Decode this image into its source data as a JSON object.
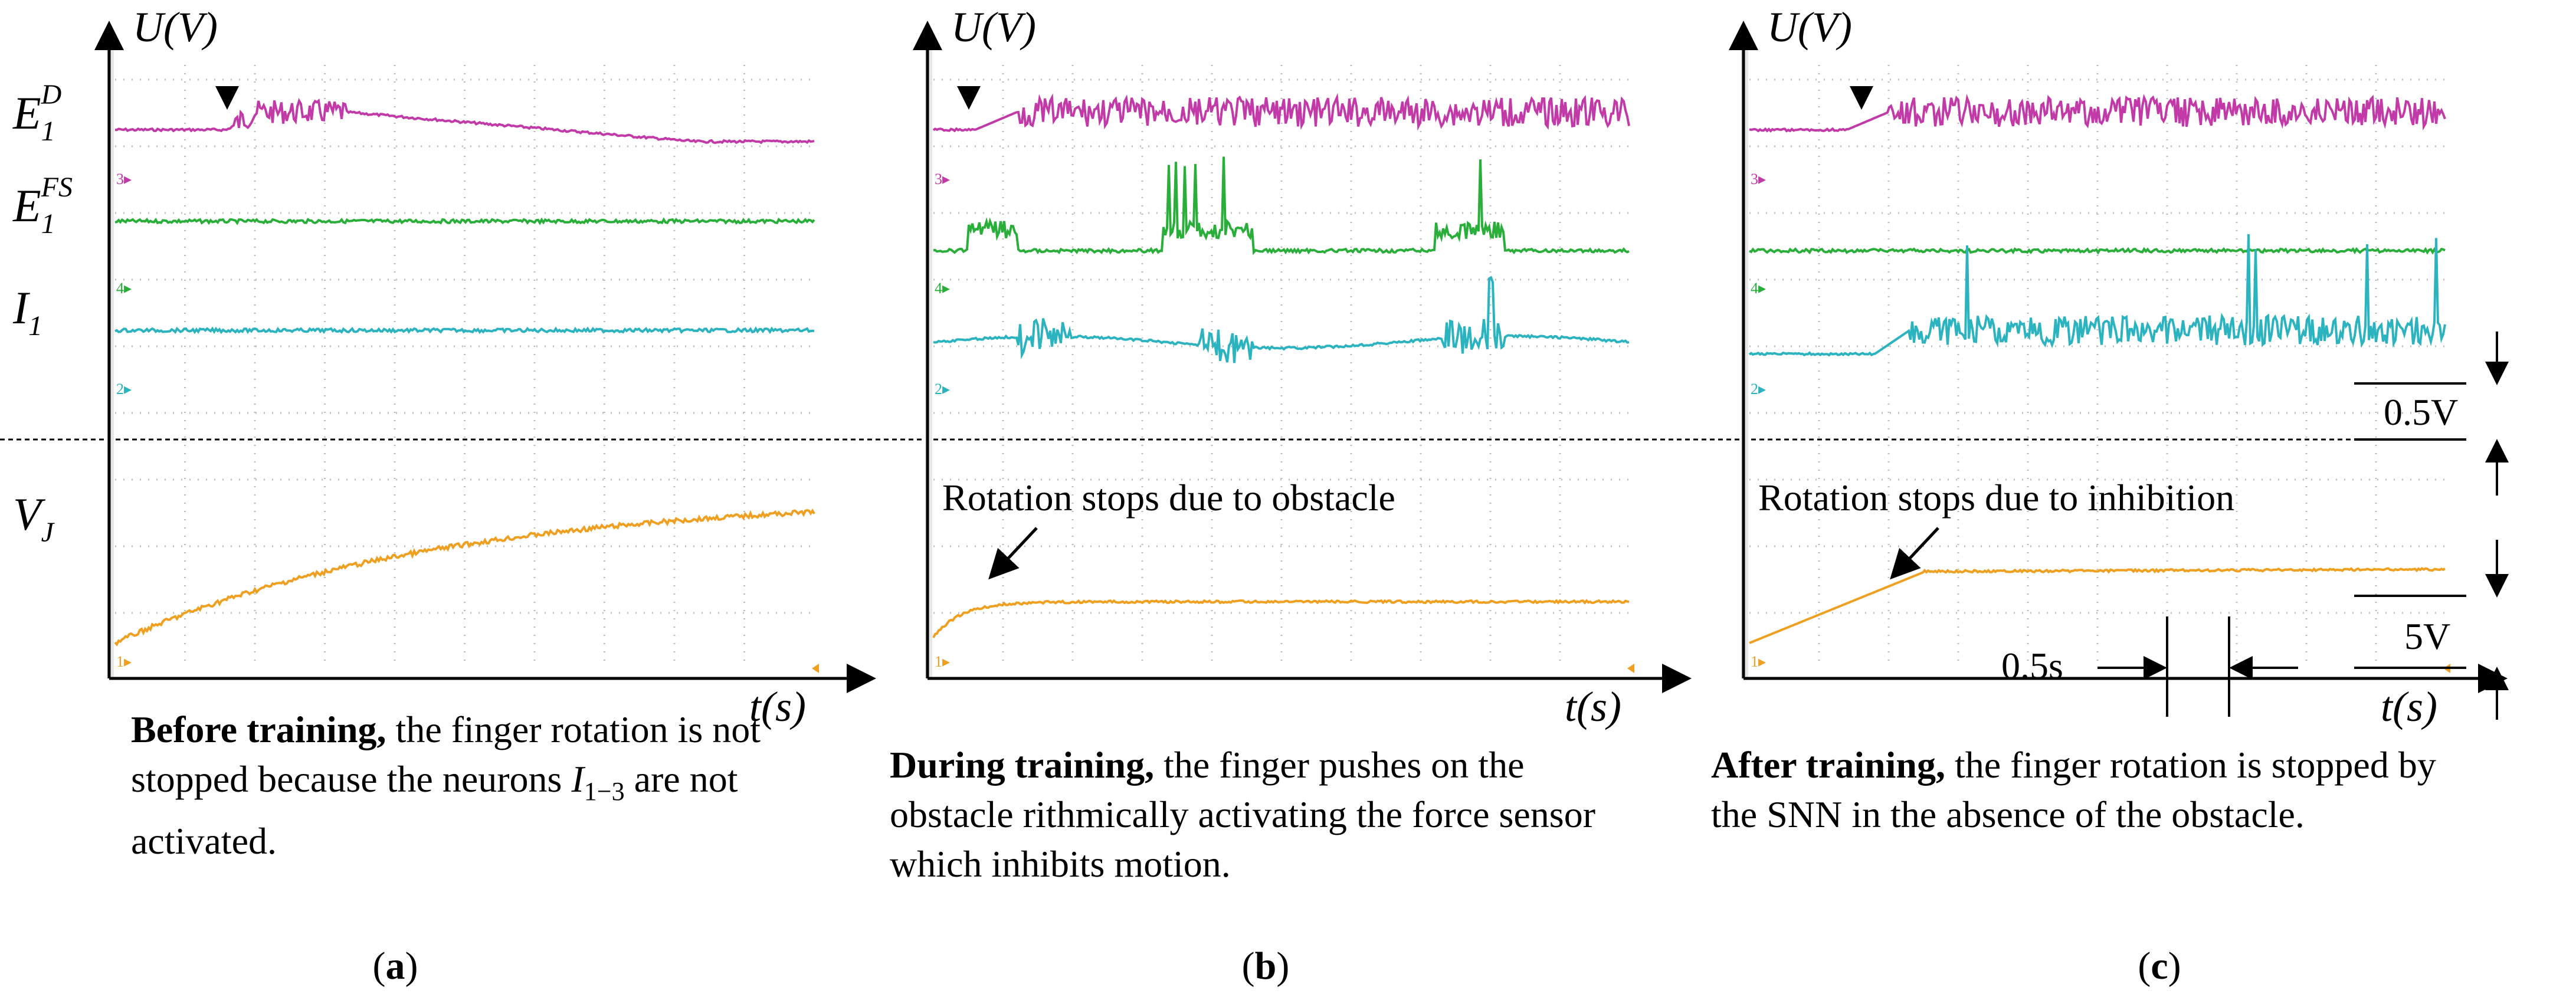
{
  "chart_data": [
    {
      "type": "line",
      "panel": "a",
      "title": "",
      "ylabel": "U(V)",
      "xlabel": "t(s)",
      "series": [
        {
          "name": "E_1^D",
          "color": "#c23aa8",
          "signal": "rise then brief spiking burst, then slow decay"
        },
        {
          "name": "E_1^FS",
          "color": "#2aae3a",
          "signal": "flat baseline"
        },
        {
          "name": "I_1",
          "color": "#2bb3c0",
          "signal": "flat baseline"
        },
        {
          "name": "V_J",
          "color": "#f0a020",
          "signal": "continuous rise (rotation not stopped)"
        }
      ],
      "annotation": "",
      "caption_bold": "Before training,",
      "caption_rest": " the finger rotation is not stopped because the neurons",
      "caption_sym": "I",
      "caption_sub": "1−3",
      "caption_tail": " are not activated.",
      "label": "a"
    },
    {
      "type": "line",
      "panel": "b",
      "ylabel": "U(V)",
      "xlabel": "t(s)",
      "series": [
        {
          "name": "E_1^D",
          "color": "#c23aa8",
          "signal": "rise then continuous spiking"
        },
        {
          "name": "E_1^FS",
          "color": "#2aae3a",
          "signal": "three rhythmic bursts of spikes"
        },
        {
          "name": "I_1",
          "color": "#2bb3c0",
          "signal": "three rhythmic bursts"
        },
        {
          "name": "V_J",
          "color": "#f0a020",
          "signal": "quick rise then plateau"
        }
      ],
      "annotation": "Rotation stops due to obstacle",
      "caption_bold": "During training,",
      "caption_rest": " the finger pushes on the obstacle rithmically activating the force sensor which inhibits motion.",
      "label": "b"
    },
    {
      "type": "line",
      "panel": "c",
      "ylabel": "U(V)",
      "xlabel": "t(s)",
      "series": [
        {
          "name": "E_1^D",
          "color": "#c23aa8",
          "signal": "rise then continuous spiking"
        },
        {
          "name": "E_1^FS",
          "color": "#2aae3a",
          "signal": "flat baseline"
        },
        {
          "name": "I_1",
          "color": "#2bb3c0",
          "signal": "rise then continuous spiking with tall spikes"
        },
        {
          "name": "V_J",
          "color": "#f0a020",
          "signal": "rise then plateau"
        }
      ],
      "annotation": "Rotation stops due to inhibition",
      "caption_bold": "After training,",
      "caption_rest": " the finger rotation is stopped by the SNN in the absence of the obstacle.",
      "label": "c"
    }
  ],
  "row_labels": {
    "ed_base": "E",
    "ed_sub": "1",
    "ed_sup": "D",
    "efs_base": "E",
    "efs_sub": "1",
    "efs_sup": "FS",
    "i_base": "I",
    "i_sub": "1",
    "vj_base": "V",
    "vj_sub": "J"
  },
  "axis": {
    "y_label": "U(V)",
    "x_label": "t(s)"
  },
  "channel_markers": [
    "3",
    "4",
    "2",
    "1"
  ],
  "scale": {
    "upper": "0.5V",
    "lower": "5V",
    "time": "0.5s"
  }
}
